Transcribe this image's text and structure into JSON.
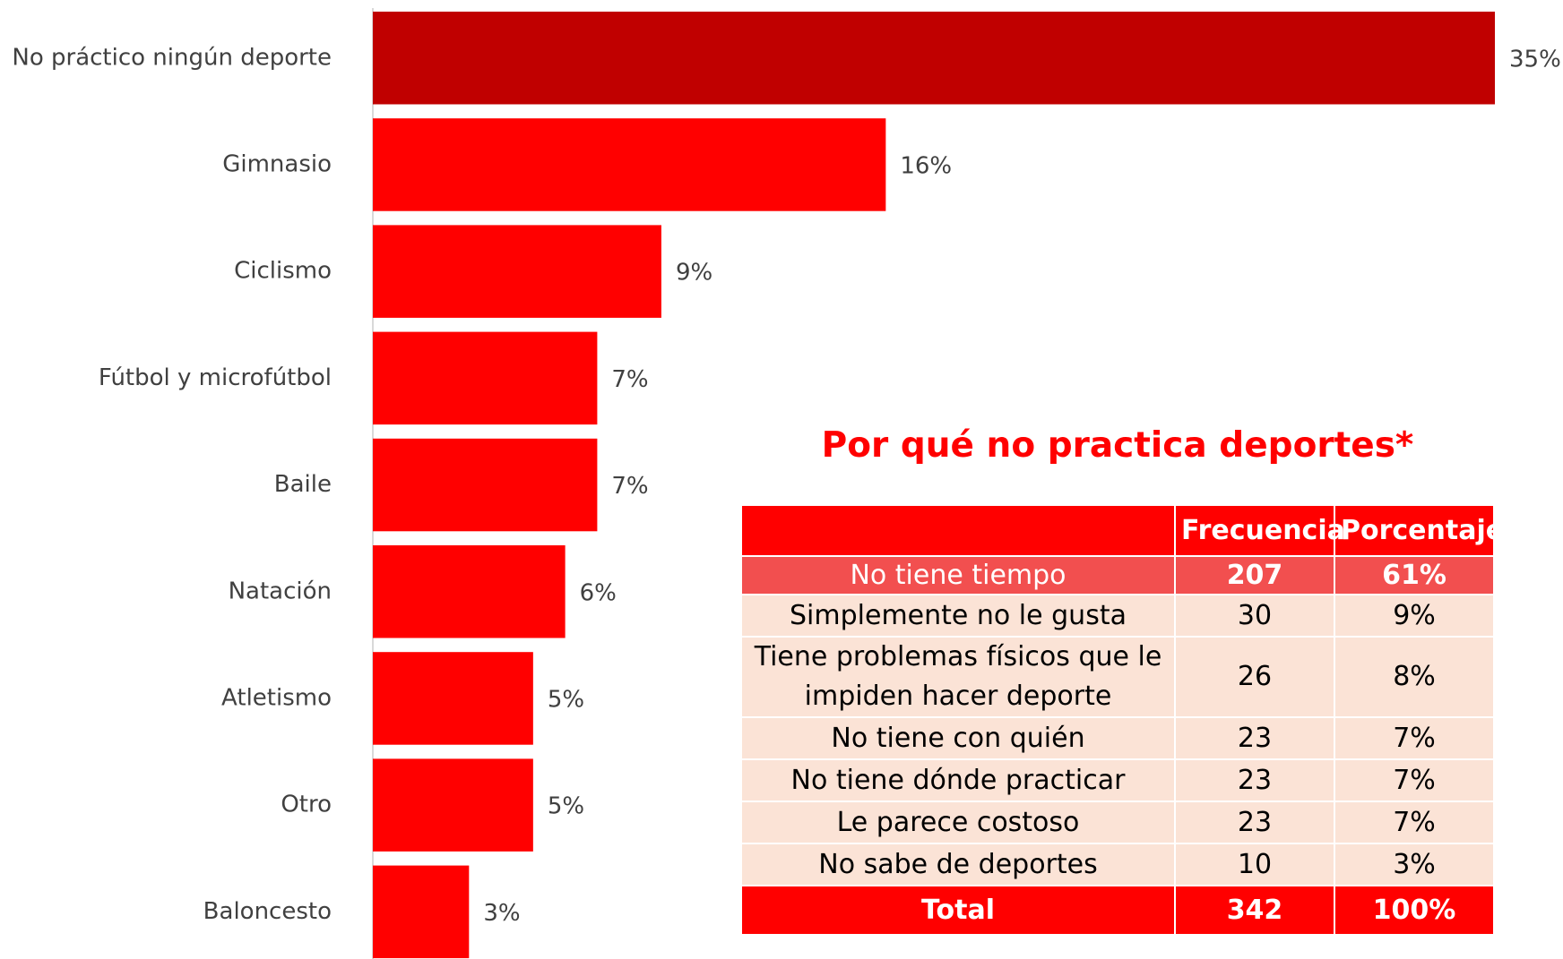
{
  "chart_data": {
    "type": "bar",
    "orientation": "horizontal",
    "categories": [
      "No práctico ningún deporte",
      "Gimnasio",
      "Ciclismo",
      "Fútbol y microfútbol",
      "Baile",
      "Natación",
      "Atletismo",
      "Otro",
      "Baloncesto"
    ],
    "values": [
      35,
      16,
      9,
      7,
      7,
      6,
      5,
      5,
      3
    ],
    "value_labels": [
      "35%",
      "16%",
      "9%",
      "7%",
      "7%",
      "6%",
      "5%",
      "5%",
      "3%"
    ],
    "colors": [
      "#c00000",
      "#ff0000",
      "#ff0000",
      "#ff0000",
      "#ff0000",
      "#ff0000",
      "#ff0000",
      "#ff0000",
      "#ff0000"
    ]
  },
  "table": {
    "title": "Por qué no practica deportes*",
    "columns": [
      "Frecuencia",
      "Porcentaje"
    ],
    "rows": [
      [
        "No tiene tiempo",
        "207",
        "61%"
      ],
      [
        "Simplemente no le gusta",
        "30",
        "9%"
      ],
      [
        "Tiene problemas físicos que le impiden hacer deporte",
        "26",
        "8%"
      ],
      [
        "No tiene con quién",
        "23",
        "7%"
      ],
      [
        "No tiene dónde practicar",
        "23",
        "7%"
      ],
      [
        "Le parece costoso",
        "23",
        "7%"
      ],
      [
        "No sabe de deportes",
        "10",
        "3%"
      ]
    ],
    "total": [
      "Total",
      "342",
      "100%"
    ]
  }
}
